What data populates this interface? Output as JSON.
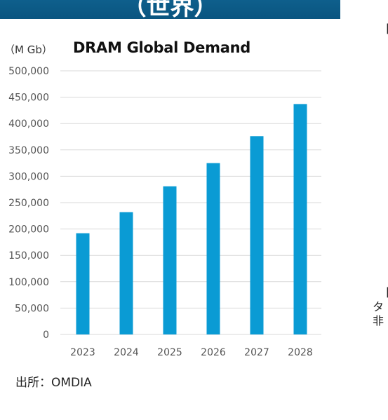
{
  "header": {
    "title": "（世界）"
  },
  "right_fragments": [
    "【",
    "【",
    "タ",
    "非"
  ],
  "source": "出所：OMDIA",
  "chart_data": {
    "type": "bar",
    "title": "DRAM Global Demand",
    "unit_label": "（M Gb）",
    "xlabel": "",
    "ylabel": "",
    "categories": [
      "2023",
      "2024",
      "2025",
      "2026",
      "2027",
      "2028"
    ],
    "values": [
      192000,
      232000,
      281000,
      325000,
      376000,
      437000
    ],
    "ylim": [
      0,
      500000
    ],
    "yticks": [
      0,
      50000,
      100000,
      150000,
      200000,
      250000,
      300000,
      350000,
      400000,
      450000,
      500000
    ],
    "ytick_labels": [
      "0",
      "50,000",
      "100,000",
      "150,000",
      "200,000",
      "250,000",
      "300,000",
      "350,000",
      "400,000",
      "450,000",
      "500,000"
    ],
    "grid": true,
    "bar_color": "#0a9bd4",
    "grid_color": "#d9d9d9"
  }
}
